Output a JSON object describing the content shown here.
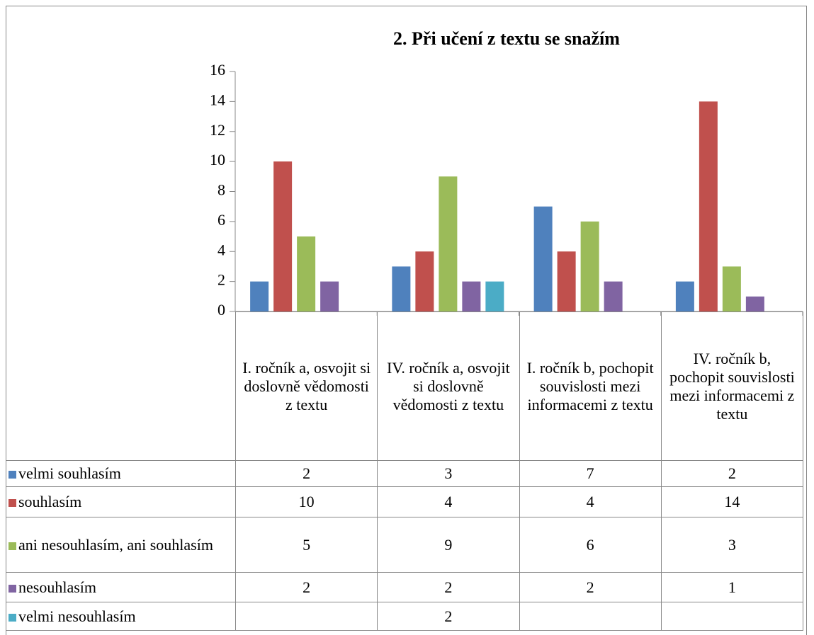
{
  "chart_data": {
    "type": "bar",
    "title": "2. Při učení z textu se snažím",
    "categories": [
      "I. ročník a, osvojit si doslovně vědomosti z textu",
      "IV. ročník a, osvojit si doslovně vědomosti z textu",
      "I. ročník b, pochopit souvislosti mezi informacemi z textu",
      "IV. ročník b, pochopit souvislosti mezi informacemi z textu"
    ],
    "series": [
      {
        "name": "velmi souhlasím",
        "color": "#4f81bd",
        "values": [
          2,
          3,
          7,
          2
        ]
      },
      {
        "name": "souhlasím",
        "color": "#c0504d",
        "values": [
          10,
          4,
          4,
          14
        ]
      },
      {
        "name": "ani nesouhlasím, ani souhlasím",
        "color": "#9bbb59",
        "values": [
          5,
          9,
          6,
          3
        ]
      },
      {
        "name": "nesouhlasím",
        "color": "#8064a2",
        "values": [
          2,
          2,
          2,
          1
        ]
      },
      {
        "name": "velmi nesouhlasím",
        "color": "#4bacc6",
        "values": [
          null,
          2,
          null,
          null
        ]
      }
    ],
    "ylim": [
      0,
      16
    ],
    "yticks": [
      0,
      2,
      4,
      6,
      8,
      10,
      12,
      14,
      16
    ]
  }
}
